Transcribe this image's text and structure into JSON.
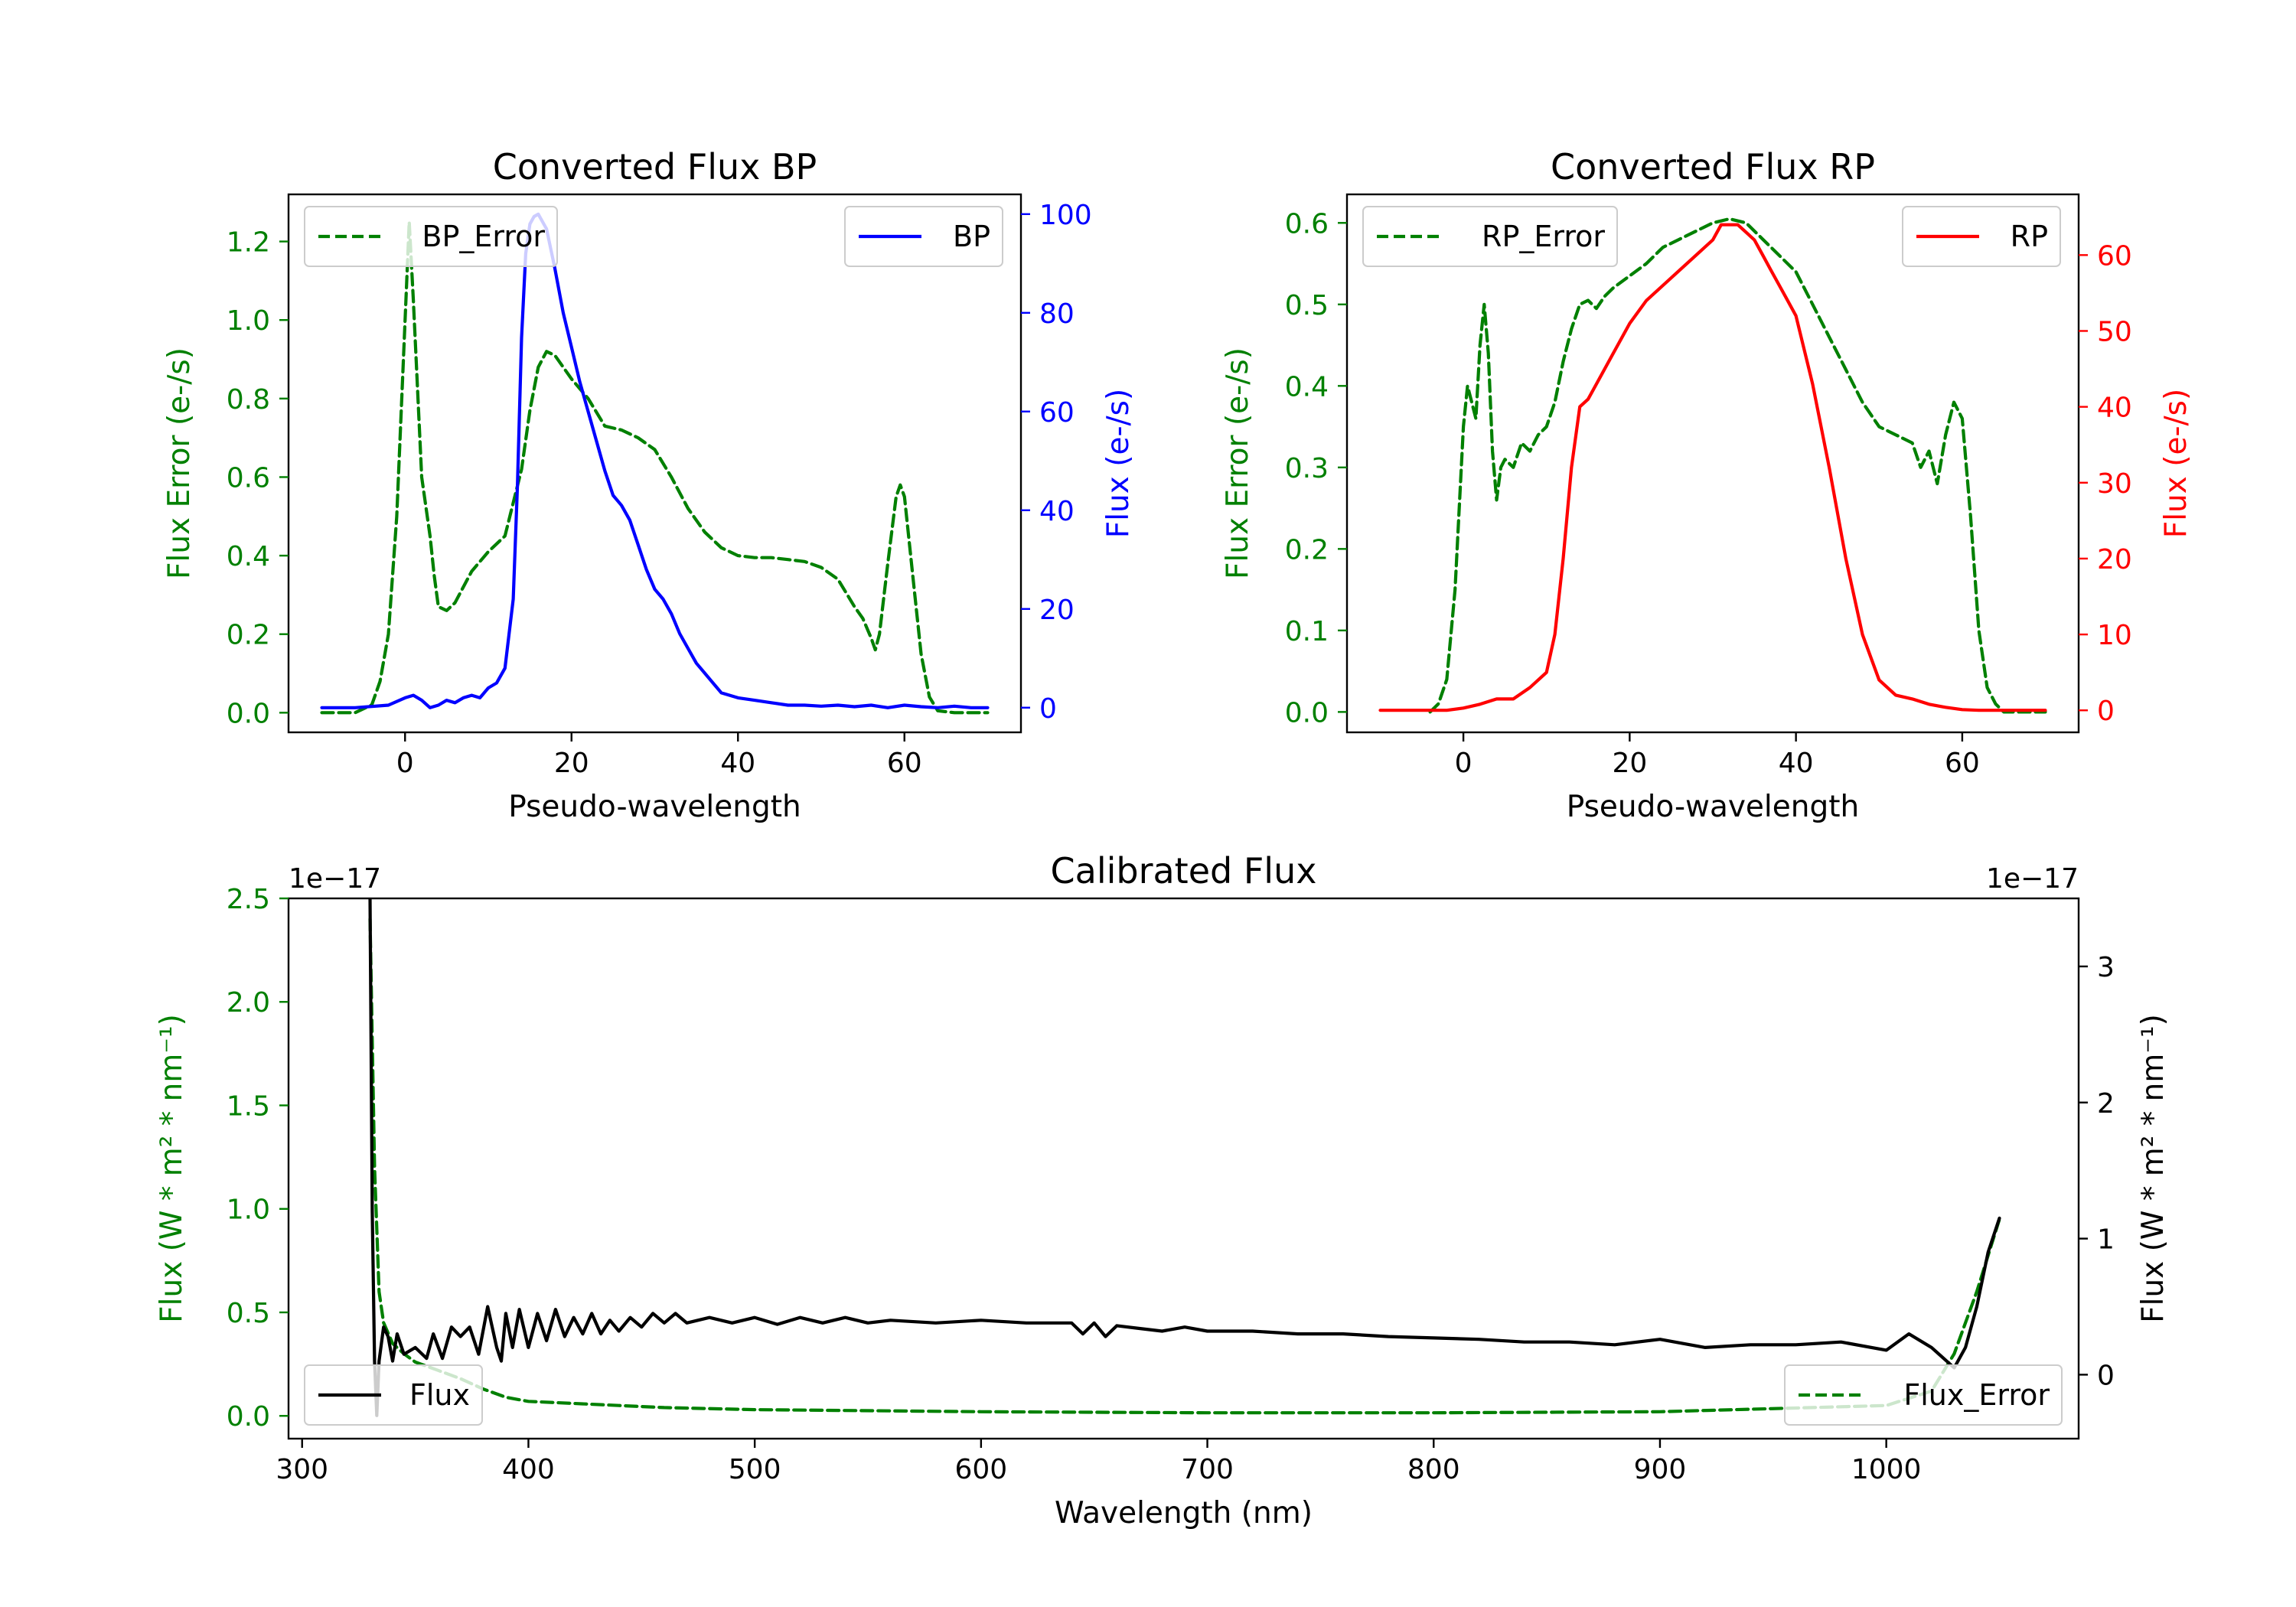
{
  "colors": {
    "green": "#008000",
    "blue": "#0000ff",
    "red": "#ff0000",
    "black": "#000000"
  },
  "chart_data": [
    {
      "type": "line",
      "id": "bp",
      "title": "Converted Flux BP",
      "xlabel": "Pseudo-wavelength",
      "ylabel_left": "Flux Error (e-/s)",
      "ylabel_right": "Flux (e-/s)",
      "xlim": [
        -14,
        74
      ],
      "ylim_left": [
        -0.05,
        1.32
      ],
      "ylim_right": [
        -5,
        104
      ],
      "xticks": [
        0,
        20,
        40,
        60
      ],
      "yticks_left": [
        0.0,
        0.2,
        0.4,
        0.6,
        0.8,
        1.0,
        1.2
      ],
      "yticks_left_labels": [
        "0.0",
        "0.2",
        "0.4",
        "0.6",
        "0.8",
        "1.0",
        "1.2"
      ],
      "yticks_right": [
        0,
        20,
        40,
        60,
        80,
        100
      ],
      "yticks_right_labels": [
        "0",
        "20",
        "40",
        "60",
        "80",
        "100"
      ],
      "legend_left": "BP_Error",
      "legend_right": "BP",
      "series": [
        {
          "name": "BP_Error",
          "axis": "left",
          "color": "#008000",
          "style": "dashed",
          "x": [
            -10,
            -6,
            -4,
            -3,
            -2,
            -1,
            0,
            0.5,
            1,
            2,
            3,
            3.5,
            4,
            5,
            6,
            7,
            8,
            10,
            12,
            14,
            15,
            16,
            17,
            18,
            19,
            20,
            22,
            24,
            26,
            28,
            30,
            32,
            34,
            36,
            38,
            40,
            42,
            44,
            46,
            48,
            50,
            52,
            54,
            55,
            56,
            56.5,
            57,
            58,
            59,
            59.5,
            60,
            61,
            62,
            63,
            64,
            66,
            68,
            70
          ],
          "y": [
            0.0,
            0.0,
            0.02,
            0.08,
            0.2,
            0.5,
            1.0,
            1.25,
            1.05,
            0.6,
            0.45,
            0.35,
            0.27,
            0.26,
            0.28,
            0.32,
            0.36,
            0.41,
            0.45,
            0.62,
            0.77,
            0.88,
            0.92,
            0.91,
            0.88,
            0.85,
            0.8,
            0.73,
            0.72,
            0.7,
            0.67,
            0.6,
            0.52,
            0.46,
            0.42,
            0.4,
            0.395,
            0.395,
            0.39,
            0.385,
            0.37,
            0.34,
            0.27,
            0.24,
            0.19,
            0.16,
            0.2,
            0.38,
            0.55,
            0.58,
            0.55,
            0.35,
            0.15,
            0.04,
            0.005,
            0.0,
            0.0,
            0.0
          ]
        },
        {
          "name": "BP",
          "axis": "right",
          "color": "#0000ff",
          "style": "solid",
          "x": [
            -10,
            -6,
            -2,
            0,
            1,
            2,
            3,
            4,
            5,
            6,
            7,
            8,
            9,
            10,
            11,
            12,
            13,
            13.5,
            14,
            14.5,
            15,
            15.5,
            16,
            17,
            18,
            19,
            20,
            21,
            22,
            23,
            24,
            25,
            26,
            27,
            28,
            29,
            30,
            31,
            32,
            33,
            34,
            35,
            36,
            37,
            38,
            40,
            42,
            44,
            46,
            48,
            50,
            52,
            54,
            56,
            58,
            60,
            62,
            64,
            66,
            68,
            70
          ],
          "y": [
            0,
            0,
            0.5,
            2,
            2.5,
            1.5,
            0,
            0.5,
            1.5,
            1,
            2,
            2.5,
            2,
            4,
            5,
            8,
            22,
            45,
            75,
            92,
            98,
            99.5,
            100,
            97,
            89,
            80,
            73,
            66,
            60,
            54,
            48,
            43,
            41,
            38,
            33,
            28,
            24,
            22,
            19,
            15,
            12,
            9,
            7,
            5,
            3,
            2,
            1.5,
            1,
            0.5,
            0.5,
            0.3,
            0.5,
            0.2,
            0.5,
            0,
            0.5,
            0.2,
            0,
            0.3,
            0,
            0
          ]
        }
      ]
    },
    {
      "type": "line",
      "id": "rp",
      "title": "Converted Flux RP",
      "xlabel": "Pseudo-wavelength",
      "ylabel_left": "Flux Error (e-/s)",
      "ylabel_right": "Flux (e-/s)",
      "xlim": [
        -14,
        74
      ],
      "ylim_left": [
        -0.025,
        0.635
      ],
      "ylim_right": [
        -2.9,
        68
      ],
      "xticks": [
        0,
        20,
        40,
        60
      ],
      "yticks_left": [
        0.0,
        0.1,
        0.2,
        0.3,
        0.4,
        0.5,
        0.6
      ],
      "yticks_left_labels": [
        "0.0",
        "0.1",
        "0.2",
        "0.3",
        "0.4",
        "0.5",
        "0.6"
      ],
      "yticks_right": [
        0,
        10,
        20,
        30,
        40,
        50,
        60
      ],
      "yticks_right_labels": [
        "0",
        "10",
        "20",
        "30",
        "40",
        "50",
        "60"
      ],
      "legend_left": "RP_Error",
      "legend_right": "RP",
      "series": [
        {
          "name": "RP_Error",
          "axis": "left",
          "color": "#008000",
          "style": "dashed",
          "x": [
            -4,
            -3,
            -2,
            -1,
            0,
            0.5,
            1,
            1.5,
            2,
            2.5,
            3,
            3.5,
            4,
            4.5,
            5,
            6,
            7,
            8,
            9,
            10,
            11,
            12,
            13,
            14,
            15,
            16,
            17,
            18,
            20,
            22,
            24,
            26,
            28,
            30,
            32,
            34,
            36,
            38,
            40,
            42,
            44,
            46,
            48,
            50,
            52,
            54,
            55,
            56,
            57,
            58,
            59,
            60,
            61,
            62,
            63,
            64,
            65,
            66,
            68,
            70
          ],
          "y": [
            0.0,
            0.01,
            0.04,
            0.15,
            0.35,
            0.4,
            0.38,
            0.36,
            0.45,
            0.5,
            0.44,
            0.32,
            0.26,
            0.3,
            0.31,
            0.3,
            0.33,
            0.32,
            0.34,
            0.35,
            0.38,
            0.43,
            0.47,
            0.5,
            0.505,
            0.495,
            0.51,
            0.52,
            0.535,
            0.55,
            0.57,
            0.58,
            0.59,
            0.6,
            0.605,
            0.6,
            0.58,
            0.56,
            0.54,
            0.5,
            0.46,
            0.42,
            0.38,
            0.35,
            0.34,
            0.33,
            0.3,
            0.32,
            0.28,
            0.34,
            0.38,
            0.36,
            0.24,
            0.1,
            0.03,
            0.01,
            0.0,
            0.0,
            0.0,
            0.0
          ]
        },
        {
          "name": "RP",
          "axis": "right",
          "color": "#ff0000",
          "style": "solid",
          "x": [
            -10,
            -6,
            -2,
            0,
            2,
            4,
            6,
            8,
            10,
            11,
            12,
            13,
            14,
            15,
            16,
            18,
            20,
            22,
            24,
            26,
            28,
            30,
            31,
            32,
            33,
            34,
            35,
            36,
            37,
            38,
            39,
            40,
            42,
            44,
            46,
            48,
            50,
            52,
            54,
            56,
            58,
            60,
            62,
            64,
            66,
            70
          ],
          "y": [
            0,
            0,
            0,
            0.3,
            0.8,
            1.5,
            1.5,
            3,
            5,
            10,
            20,
            32,
            40,
            41,
            43,
            47,
            51,
            54,
            56,
            58,
            60,
            62,
            64,
            64,
            64,
            63,
            62,
            60,
            58,
            56,
            54,
            52,
            43,
            32,
            20,
            10,
            4,
            2,
            1.5,
            0.8,
            0.4,
            0.1,
            0,
            0,
            0,
            0
          ]
        }
      ]
    },
    {
      "type": "line",
      "id": "calibrated",
      "title": "Calibrated Flux",
      "xlabel": "Wavelength (nm)",
      "ylabel_left": "Flux (W * m² * nm⁻¹)",
      "ylabel_right": "Flux (W * m² * nm⁻¹)",
      "offset_left": "1e−17",
      "offset_right": "1e−17",
      "xlim": [
        294,
        1085
      ],
      "ylim_left": [
        -0.11,
        2.5
      ],
      "ylim_right": [
        -0.47,
        3.5
      ],
      "xticks": [
        300,
        400,
        500,
        600,
        700,
        800,
        900,
        1000
      ],
      "yticks_left": [
        0.0,
        0.5,
        1.0,
        1.5,
        2.0,
        2.5
      ],
      "yticks_left_labels": [
        "0.0",
        "0.5",
        "1.0",
        "1.5",
        "2.0",
        "2.5"
      ],
      "yticks_right": [
        0,
        1,
        2,
        3
      ],
      "yticks_right_labels": [
        "0",
        "1",
        "2",
        "3"
      ],
      "legend_left": "Flux",
      "legend_right": "Flux_Error",
      "series": [
        {
          "name": "Flux_Error",
          "axis": "left",
          "color": "#008000",
          "style": "dashed",
          "x": [
            330,
            332,
            334,
            336,
            340,
            345,
            350,
            360,
            370,
            380,
            390,
            400,
            420,
            440,
            460,
            500,
            600,
            700,
            800,
            900,
            1000,
            1020,
            1030,
            1040,
            1050
          ],
          "y": [
            2.4,
            1.2,
            0.6,
            0.45,
            0.35,
            0.3,
            0.26,
            0.22,
            0.18,
            0.13,
            0.09,
            0.07,
            0.06,
            0.05,
            0.04,
            0.03,
            0.02,
            0.015,
            0.015,
            0.02,
            0.05,
            0.12,
            0.3,
            0.6,
            0.95
          ]
        },
        {
          "name": "Flux",
          "axis": "right",
          "color": "#000000",
          "style": "solid",
          "x": [
            330,
            331,
            332,
            333,
            334,
            336,
            338,
            340,
            342,
            345,
            350,
            355,
            358,
            362,
            366,
            370,
            374,
            378,
            382,
            386,
            388,
            390,
            393,
            396,
            400,
            404,
            408,
            412,
            416,
            420,
            424,
            428,
            432,
            436,
            440,
            445,
            450,
            455,
            460,
            465,
            470,
            480,
            490,
            500,
            510,
            520,
            530,
            540,
            550,
            560,
            580,
            600,
            620,
            640,
            645,
            650,
            655,
            660,
            670,
            680,
            690,
            700,
            720,
            740,
            760,
            780,
            800,
            820,
            840,
            860,
            880,
            900,
            920,
            940,
            960,
            980,
            1000,
            1010,
            1020,
            1030,
            1035,
            1040,
            1045,
            1050
          ],
          "y": [
            3.5,
            1.2,
            0.1,
            -0.3,
            0.1,
            0.35,
            0.28,
            0.1,
            0.3,
            0.15,
            0.2,
            0.12,
            0.3,
            0.12,
            0.35,
            0.28,
            0.35,
            0.15,
            0.5,
            0.2,
            0.1,
            0.45,
            0.2,
            0.48,
            0.2,
            0.45,
            0.25,
            0.48,
            0.28,
            0.42,
            0.3,
            0.45,
            0.3,
            0.4,
            0.32,
            0.42,
            0.35,
            0.45,
            0.38,
            0.45,
            0.38,
            0.42,
            0.38,
            0.42,
            0.37,
            0.42,
            0.38,
            0.42,
            0.38,
            0.4,
            0.38,
            0.4,
            0.38,
            0.38,
            0.3,
            0.38,
            0.28,
            0.36,
            0.34,
            0.32,
            0.35,
            0.32,
            0.32,
            0.3,
            0.3,
            0.28,
            0.27,
            0.26,
            0.24,
            0.24,
            0.22,
            0.26,
            0.2,
            0.22,
            0.22,
            0.24,
            0.18,
            0.3,
            0.2,
            0.05,
            0.2,
            0.5,
            0.9,
            1.15
          ]
        }
      ]
    }
  ]
}
